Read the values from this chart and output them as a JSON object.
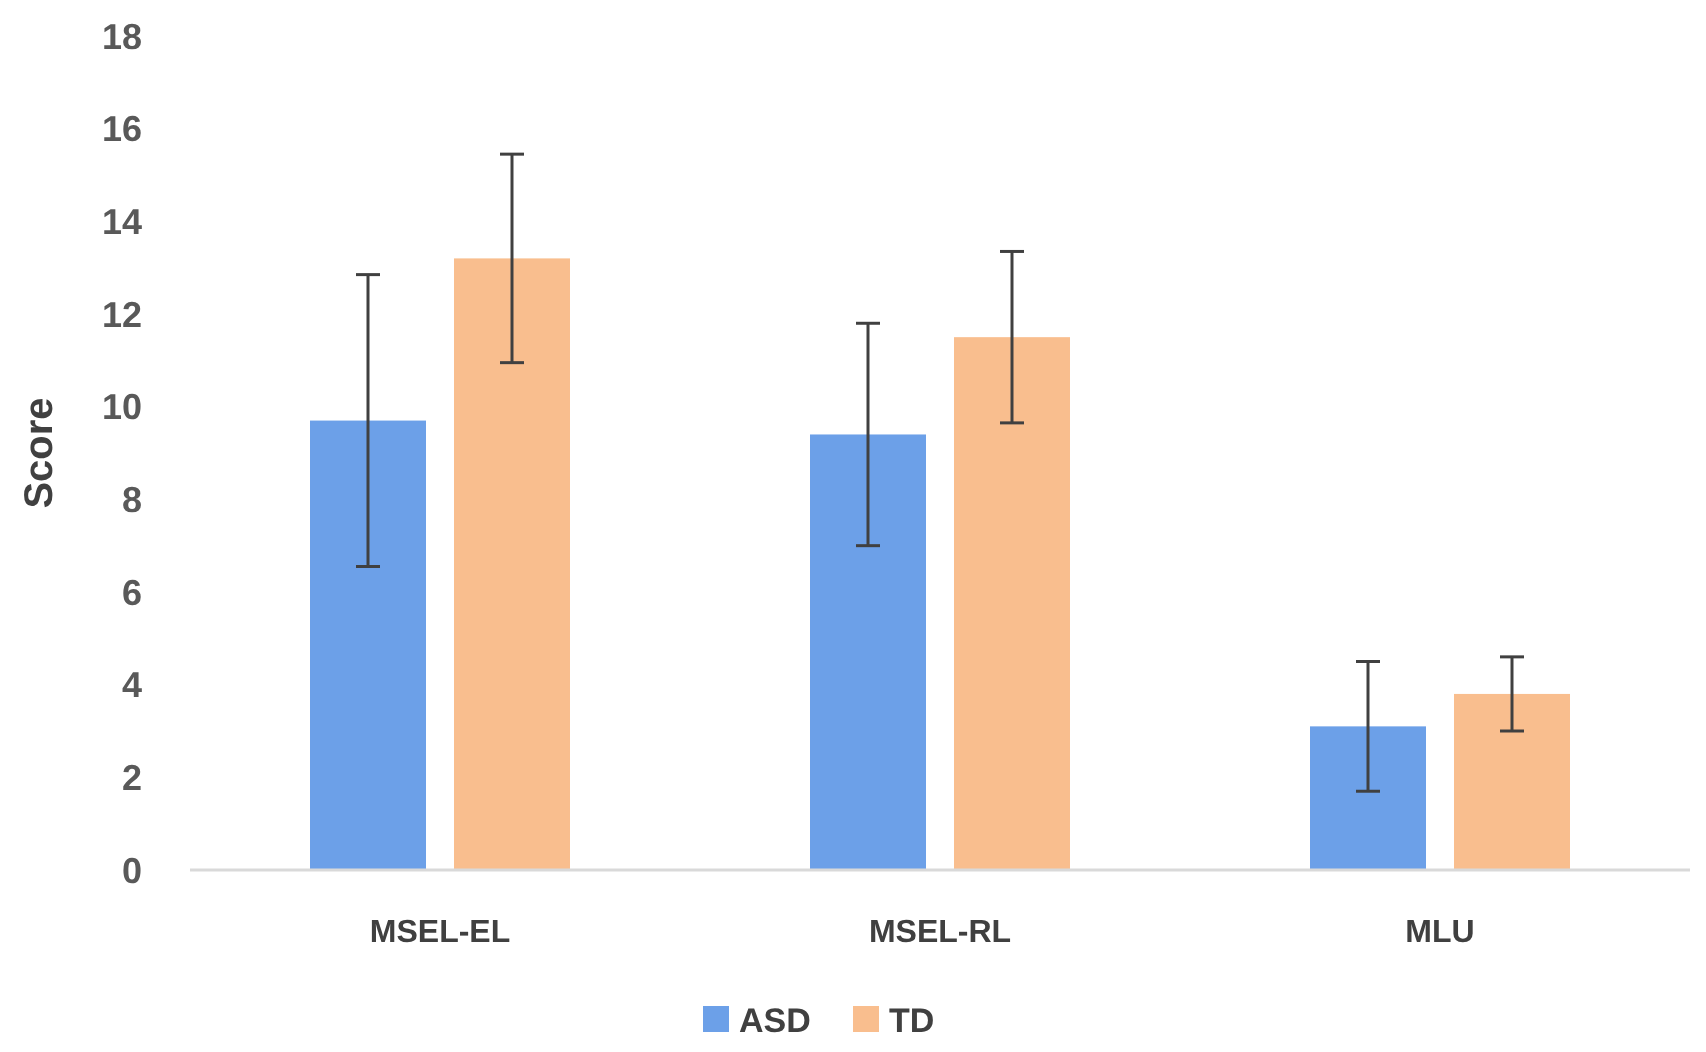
{
  "chart_data": {
    "type": "bar",
    "ylabel": "Score",
    "categories": [
      "MSEL-EL",
      "MSEL-RL",
      "MLU"
    ],
    "series": [
      {
        "name": "ASD",
        "color": "#6ca0e8",
        "values": [
          9.7,
          9.4,
          3.1
        ],
        "errors": [
          3.15,
          2.4,
          1.4
        ]
      },
      {
        "name": "TD",
        "color": "#f9be8e",
        "values": [
          13.2,
          11.5,
          3.8
        ],
        "errors": [
          2.25,
          1.85,
          0.8
        ]
      }
    ],
    "ylim": [
      0,
      18
    ],
    "yticks": [
      0,
      2,
      4,
      6,
      8,
      10,
      12,
      14,
      16,
      18
    ],
    "legend": "bottom",
    "grid": false
  }
}
